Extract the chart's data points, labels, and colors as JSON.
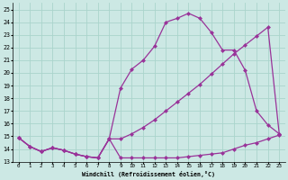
{
  "xlabel": "Windchill (Refroidissement éolien,°C)",
  "bg_color": "#cce8e4",
  "grid_color": "#aad4cc",
  "line_color": "#993399",
  "markersize": 2.5,
  "linewidth": 0.9,
  "xlim": [
    -0.5,
    23.5
  ],
  "ylim": [
    13,
    25.5
  ],
  "xticks": [
    0,
    1,
    2,
    3,
    4,
    5,
    6,
    7,
    8,
    9,
    10,
    11,
    12,
    13,
    14,
    15,
    16,
    17,
    18,
    19,
    20,
    21,
    22,
    23
  ],
  "yticks": [
    13,
    14,
    15,
    16,
    17,
    18,
    19,
    20,
    21,
    22,
    23,
    24,
    25
  ],
  "line1_x": [
    0,
    1,
    2,
    3,
    4,
    5,
    6,
    7,
    8,
    9,
    10,
    11,
    12,
    13,
    14,
    15,
    16,
    17,
    18,
    19,
    20,
    21,
    22,
    23
  ],
  "line1_y": [
    14.9,
    14.2,
    13.8,
    14.1,
    13.9,
    13.6,
    13.4,
    13.3,
    14.8,
    13.3,
    13.3,
    13.3,
    13.3,
    13.3,
    13.3,
    13.4,
    13.5,
    13.6,
    13.7,
    14.0,
    14.3,
    14.5,
    14.8,
    15.1
  ],
  "line2_x": [
    0,
    1,
    2,
    3,
    4,
    5,
    6,
    7,
    8,
    9,
    10,
    11,
    12,
    13,
    14,
    15,
    16,
    17,
    18,
    19,
    20,
    21,
    22,
    23
  ],
  "line2_y": [
    14.9,
    14.2,
    13.8,
    14.1,
    13.9,
    13.6,
    13.4,
    13.3,
    14.8,
    14.8,
    15.2,
    15.7,
    16.3,
    17.0,
    17.7,
    18.4,
    19.1,
    19.9,
    20.7,
    21.5,
    22.2,
    22.9,
    23.6,
    15.2
  ],
  "line3_x": [
    0,
    1,
    2,
    3,
    4,
    5,
    6,
    7,
    8,
    9,
    10,
    11,
    12,
    13,
    14,
    15,
    16,
    17,
    18,
    19,
    20,
    21,
    22,
    23
  ],
  "line3_y": [
    14.9,
    14.2,
    13.8,
    14.1,
    13.9,
    13.6,
    13.4,
    13.3,
    14.8,
    18.8,
    20.3,
    21.0,
    22.1,
    24.0,
    24.3,
    24.7,
    24.3,
    23.2,
    21.8,
    21.8,
    20.2,
    17.0,
    15.9,
    15.2
  ]
}
